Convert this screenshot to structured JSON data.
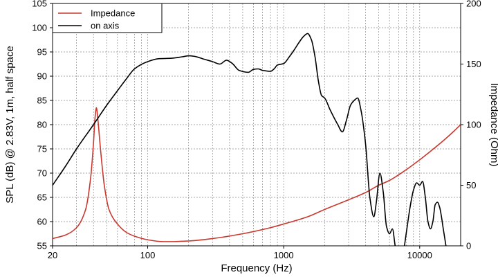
{
  "chart_data": {
    "type": "line",
    "xlabel": "Frequency (Hz)",
    "ylabel": "SPL (dB) @ 2.83V, 1m, half space",
    "y2label": "Impedance (Ohm)",
    "x_scale": "log",
    "xlim": [
      20,
      20000
    ],
    "ylim": [
      55,
      105
    ],
    "y2lim": [
      0,
      200
    ],
    "grid": true,
    "legend": "top-left",
    "x_ticks": [
      {
        "value": 20,
        "label": "20"
      },
      {
        "value": 100,
        "label": "100"
      },
      {
        "value": 1000,
        "label": "1000"
      },
      {
        "value": 10000,
        "label": "10000"
      }
    ],
    "y_ticks": [
      55,
      60,
      65,
      70,
      75,
      80,
      85,
      90,
      95,
      100,
      105
    ],
    "y2_ticks": [
      0,
      50,
      100,
      150,
      200
    ],
    "series": [
      {
        "name": "Impedance",
        "axis": "right",
        "color": "#c8382d",
        "points": [
          [
            20,
            6
          ],
          [
            25,
            9
          ],
          [
            30,
            15
          ],
          [
            35,
            30
          ],
          [
            38,
            55
          ],
          [
            40,
            85
          ],
          [
            41,
            105
          ],
          [
            42,
            114
          ],
          [
            43,
            105
          ],
          [
            45,
            80
          ],
          [
            48,
            50
          ],
          [
            52,
            30
          ],
          [
            60,
            18
          ],
          [
            70,
            11
          ],
          [
            80,
            8
          ],
          [
            100,
            5
          ],
          [
            130,
            3.5
          ],
          [
            150,
            3.5
          ],
          [
            200,
            4
          ],
          [
            300,
            6
          ],
          [
            500,
            10
          ],
          [
            800,
            15
          ],
          [
            1000,
            18
          ],
          [
            1500,
            24
          ],
          [
            2000,
            30
          ],
          [
            3000,
            38
          ],
          [
            4000,
            44
          ],
          [
            5000,
            50
          ],
          [
            6000,
            54
          ],
          [
            8000,
            63
          ],
          [
            10000,
            71
          ],
          [
            12000,
            78
          ],
          [
            15000,
            87
          ],
          [
            18000,
            95
          ],
          [
            20000,
            100
          ]
        ]
      },
      {
        "name": "on axis",
        "axis": "left",
        "color": "#000000",
        "points": [
          [
            20,
            67.5
          ],
          [
            25,
            71.5
          ],
          [
            30,
            75
          ],
          [
            40,
            80
          ],
          [
            50,
            84
          ],
          [
            60,
            87
          ],
          [
            70,
            89.5
          ],
          [
            80,
            91.5
          ],
          [
            100,
            93
          ],
          [
            120,
            93.6
          ],
          [
            150,
            93.7
          ],
          [
            180,
            94
          ],
          [
            200,
            94.2
          ],
          [
            220,
            94.1
          ],
          [
            260,
            93.5
          ],
          [
            300,
            93
          ],
          [
            340,
            92.5
          ],
          [
            380,
            93.3
          ],
          [
            420,
            92.6
          ],
          [
            470,
            91.2
          ],
          [
            550,
            90.8
          ],
          [
            600,
            91.4
          ],
          [
            650,
            91.5
          ],
          [
            700,
            91.2
          ],
          [
            800,
            91
          ],
          [
            850,
            91.5
          ],
          [
            900,
            92.3
          ],
          [
            1000,
            92.6
          ],
          [
            1100,
            94
          ],
          [
            1200,
            95.5
          ],
          [
            1300,
            97
          ],
          [
            1400,
            98.2
          ],
          [
            1500,
            98.8
          ],
          [
            1600,
            97.5
          ],
          [
            1700,
            94
          ],
          [
            1800,
            89
          ],
          [
            1900,
            86
          ],
          [
            2000,
            85.5
          ],
          [
            2200,
            83
          ],
          [
            2500,
            80
          ],
          [
            2700,
            78.5
          ],
          [
            2900,
            81
          ],
          [
            3100,
            84
          ],
          [
            3300,
            85
          ],
          [
            3500,
            85.5
          ],
          [
            3700,
            83
          ],
          [
            4000,
            76
          ],
          [
            4300,
            65
          ],
          [
            4600,
            61
          ],
          [
            4800,
            64
          ],
          [
            5100,
            70
          ],
          [
            5400,
            66
          ],
          [
            5700,
            59
          ],
          [
            6000,
            57.5
          ],
          [
            6300,
            58.5
          ],
          [
            6600,
            55
          ],
          [
            7000,
            51
          ],
          [
            7500,
            53
          ],
          [
            8000,
            58
          ],
          [
            8500,
            63
          ],
          [
            9000,
            66.5
          ],
          [
            9500,
            68
          ],
          [
            10000,
            67.5
          ],
          [
            10500,
            68.3
          ],
          [
            11000,
            65
          ],
          [
            11500,
            60
          ],
          [
            12000,
            58.5
          ],
          [
            12500,
            60
          ],
          [
            13000,
            63.5
          ],
          [
            13500,
            64
          ],
          [
            14000,
            63
          ],
          [
            15000,
            58
          ],
          [
            16000,
            53
          ]
        ]
      }
    ]
  }
}
